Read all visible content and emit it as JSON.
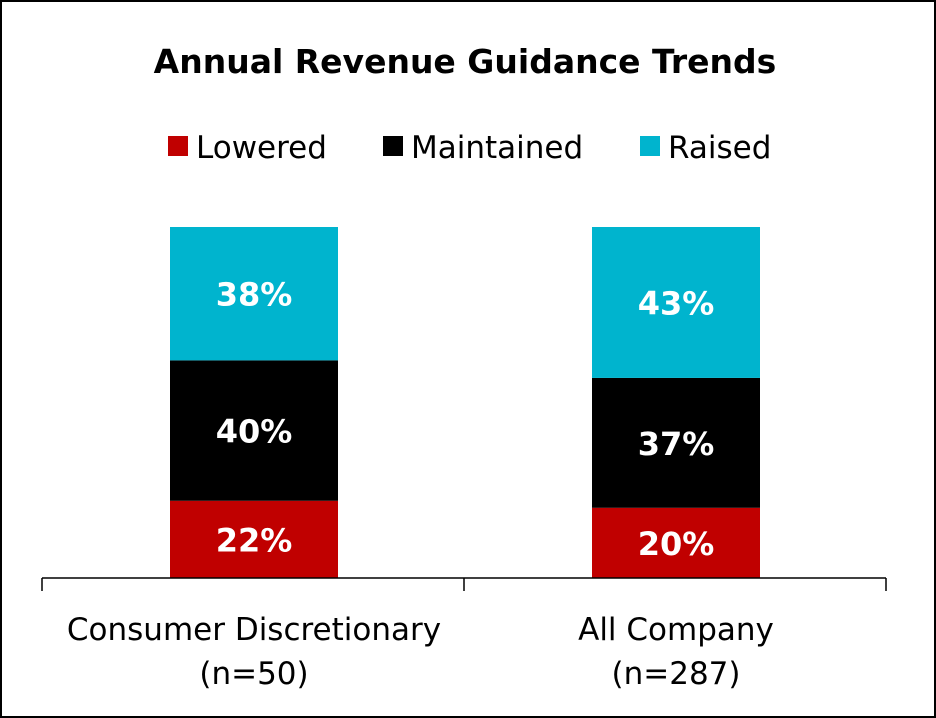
{
  "chart_data": {
    "type": "bar",
    "stacked": true,
    "title": "Annual Revenue Guidance Trends",
    "legend_position": "top",
    "categories": [
      [
        "Consumer Discretionary",
        "(n=50)"
      ],
      [
        "All Company",
        "(n=287)"
      ]
    ],
    "series": [
      {
        "name": "Lowered",
        "color": "#C00000",
        "values": [
          22,
          20
        ],
        "labels": [
          "22%",
          "20%"
        ]
      },
      {
        "name": "Maintained",
        "color": "#000000",
        "values": [
          40,
          37
        ],
        "labels": [
          "40%",
          "37%"
        ]
      },
      {
        "name": "Raised",
        "color": "#00B4CE",
        "values": [
          38,
          43
        ],
        "labels": [
          "38%",
          "43%"
        ]
      }
    ],
    "ylim": [
      0,
      100
    ],
    "grid": false,
    "xlabel": "",
    "ylabel": ""
  }
}
